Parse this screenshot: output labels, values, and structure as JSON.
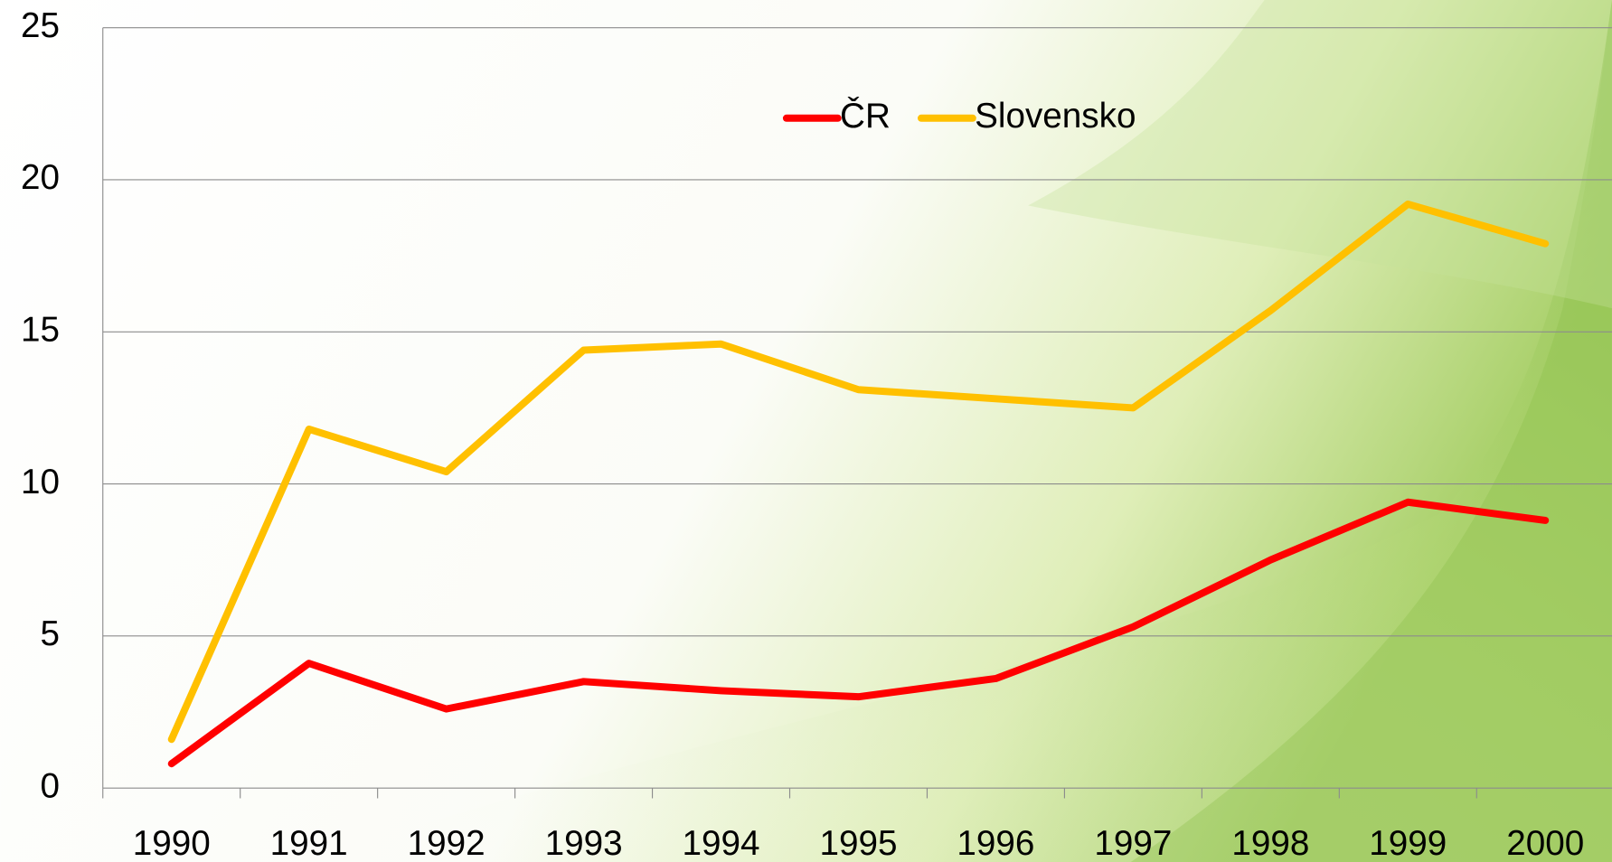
{
  "chart_data": {
    "type": "line",
    "categories": [
      "1990",
      "1991",
      "1992",
      "1993",
      "1994",
      "1995",
      "1996",
      "1997",
      "1998",
      "1999",
      "2000"
    ],
    "series": [
      {
        "name": "ČR",
        "color": "#ff0000",
        "values": [
          0.8,
          4.1,
          2.6,
          3.5,
          3.2,
          3.0,
          3.6,
          5.3,
          7.5,
          9.4,
          8.8
        ]
      },
      {
        "name": "Slovensko",
        "color": "#ffc000",
        "values": [
          1.6,
          11.8,
          10.4,
          14.4,
          14.6,
          13.1,
          12.8,
          12.5,
          15.7,
          19.2,
          17.9
        ]
      }
    ],
    "ylim": [
      0,
      25
    ],
    "yticks": [
      0,
      5,
      10,
      15,
      20,
      25
    ],
    "grid": true,
    "legend": "top"
  }
}
